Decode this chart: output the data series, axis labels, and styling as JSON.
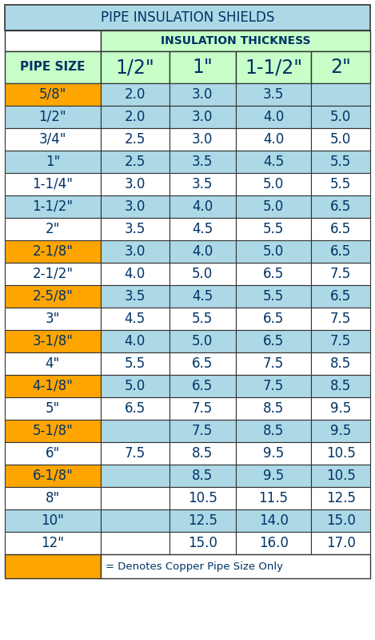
{
  "title": "PIPE INSULATION SHIELDS",
  "subtitle": "INSULATION THICKNESS",
  "col_headers": [
    "PIPE SIZE",
    "1/2\"",
    "1\"",
    "1-1/2\"",
    "2\""
  ],
  "rows": [
    {
      "pipe": "5/8\"",
      "vals": [
        "2.0",
        "3.0",
        "3.5",
        ""
      ],
      "orange": true,
      "row_bg": "blue"
    },
    {
      "pipe": "1/2\"",
      "vals": [
        "2.0",
        "3.0",
        "4.0",
        "5.0"
      ],
      "orange": false,
      "row_bg": "blue"
    },
    {
      "pipe": "3/4\"",
      "vals": [
        "2.5",
        "3.0",
        "4.0",
        "5.0"
      ],
      "orange": false,
      "row_bg": "white"
    },
    {
      "pipe": "1\"",
      "vals": [
        "2.5",
        "3.5",
        "4.5",
        "5.5"
      ],
      "orange": false,
      "row_bg": "blue"
    },
    {
      "pipe": "1-1/4\"",
      "vals": [
        "3.0",
        "3.5",
        "5.0",
        "5.5"
      ],
      "orange": false,
      "row_bg": "white"
    },
    {
      "pipe": "1-1/2\"",
      "vals": [
        "3.0",
        "4.0",
        "5.0",
        "6.5"
      ],
      "orange": false,
      "row_bg": "blue"
    },
    {
      "pipe": "2\"",
      "vals": [
        "3.5",
        "4.5",
        "5.5",
        "6.5"
      ],
      "orange": false,
      "row_bg": "white"
    },
    {
      "pipe": "2-1/8\"",
      "vals": [
        "3.0",
        "4.0",
        "5.0",
        "6.5"
      ],
      "orange": true,
      "row_bg": "blue"
    },
    {
      "pipe": "2-1/2\"",
      "vals": [
        "4.0",
        "5.0",
        "6.5",
        "7.5"
      ],
      "orange": false,
      "row_bg": "white"
    },
    {
      "pipe": "2-5/8\"",
      "vals": [
        "3.5",
        "4.5",
        "5.5",
        "6.5"
      ],
      "orange": true,
      "row_bg": "blue"
    },
    {
      "pipe": "3\"",
      "vals": [
        "4.5",
        "5.5",
        "6.5",
        "7.5"
      ],
      "orange": false,
      "row_bg": "white"
    },
    {
      "pipe": "3-1/8\"",
      "vals": [
        "4.0",
        "5.0",
        "6.5",
        "7.5"
      ],
      "orange": true,
      "row_bg": "blue"
    },
    {
      "pipe": "4\"",
      "vals": [
        "5.5",
        "6.5",
        "7.5",
        "8.5"
      ],
      "orange": false,
      "row_bg": "white"
    },
    {
      "pipe": "4-1/8\"",
      "vals": [
        "5.0",
        "6.5",
        "7.5",
        "8.5"
      ],
      "orange": true,
      "row_bg": "blue"
    },
    {
      "pipe": "5\"",
      "vals": [
        "6.5",
        "7.5",
        "8.5",
        "9.5"
      ],
      "orange": false,
      "row_bg": "white"
    },
    {
      "pipe": "5-1/8\"",
      "vals": [
        "",
        "7.5",
        "8.5",
        "9.5"
      ],
      "orange": true,
      "row_bg": "blue"
    },
    {
      "pipe": "6\"",
      "vals": [
        "7.5",
        "8.5",
        "9.5",
        "10.5"
      ],
      "orange": false,
      "row_bg": "white"
    },
    {
      "pipe": "6-1/8\"",
      "vals": [
        "",
        "8.5",
        "9.5",
        "10.5"
      ],
      "orange": true,
      "row_bg": "blue"
    },
    {
      "pipe": "8\"",
      "vals": [
        "",
        "10.5",
        "11.5",
        "12.5"
      ],
      "orange": false,
      "row_bg": "white"
    },
    {
      "pipe": "10\"",
      "vals": [
        "",
        "12.5",
        "14.0",
        "15.0"
      ],
      "orange": false,
      "row_bg": "blue"
    },
    {
      "pipe": "12\"",
      "vals": [
        "",
        "15.0",
        "16.0",
        "17.0"
      ],
      "orange": false,
      "row_bg": "white"
    }
  ],
  "footer": "= Denotes Copper Pipe Size Only",
  "color_title_bg": "#ADD8E6",
  "color_subtitle_bg": "#C8FFC8",
  "color_header_bg": "#C8FFC8",
  "color_row_blue": "#ADD8E6",
  "color_row_white": "#FFFFFF",
  "color_orange": "#FFA500",
  "color_text": "#003366",
  "color_border": "#333333"
}
